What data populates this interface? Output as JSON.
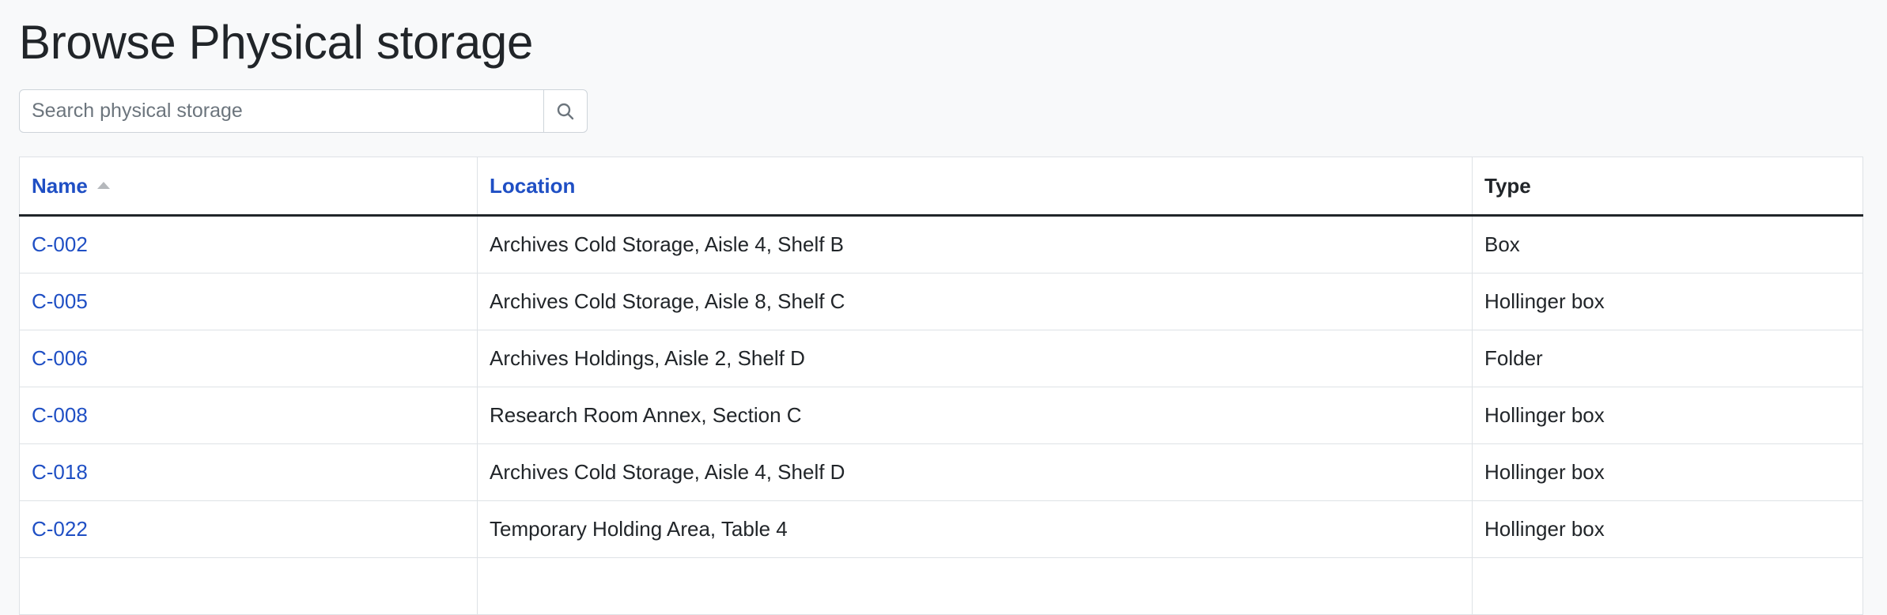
{
  "page": {
    "title": "Browse Physical storage"
  },
  "search": {
    "placeholder": "Search physical storage",
    "value": "",
    "button_icon": "search-icon"
  },
  "table": {
    "columns": [
      {
        "label": "Name",
        "sortable": true,
        "sort": "ascending"
      },
      {
        "label": "Location",
        "sortable": true
      },
      {
        "label": "Type",
        "sortable": false
      }
    ],
    "rows": [
      {
        "name": "C-002",
        "location": "Archives Cold Storage, Aisle 4, Shelf B",
        "type": "Box"
      },
      {
        "name": "C-005",
        "location": "Archives Cold Storage, Aisle 8, Shelf C",
        "type": "Hollinger box"
      },
      {
        "name": "C-006",
        "location": "Archives Holdings, Aisle 2, Shelf D",
        "type": "Folder"
      },
      {
        "name": "C-008",
        "location": "Research Room Annex, Section C",
        "type": "Hollinger box"
      },
      {
        "name": "C-018",
        "location": "Archives Cold Storage, Aisle 4, Shelf D",
        "type": "Hollinger box"
      },
      {
        "name": "C-022",
        "location": "Temporary Holding Area, Table 4",
        "type": "Hollinger box"
      },
      {
        "name": "",
        "location": "",
        "type": ""
      }
    ]
  },
  "colors": {
    "link": "#1f4fc4",
    "background": "#f8f9fa",
    "text": "#212529",
    "border": "#dee2e6"
  }
}
